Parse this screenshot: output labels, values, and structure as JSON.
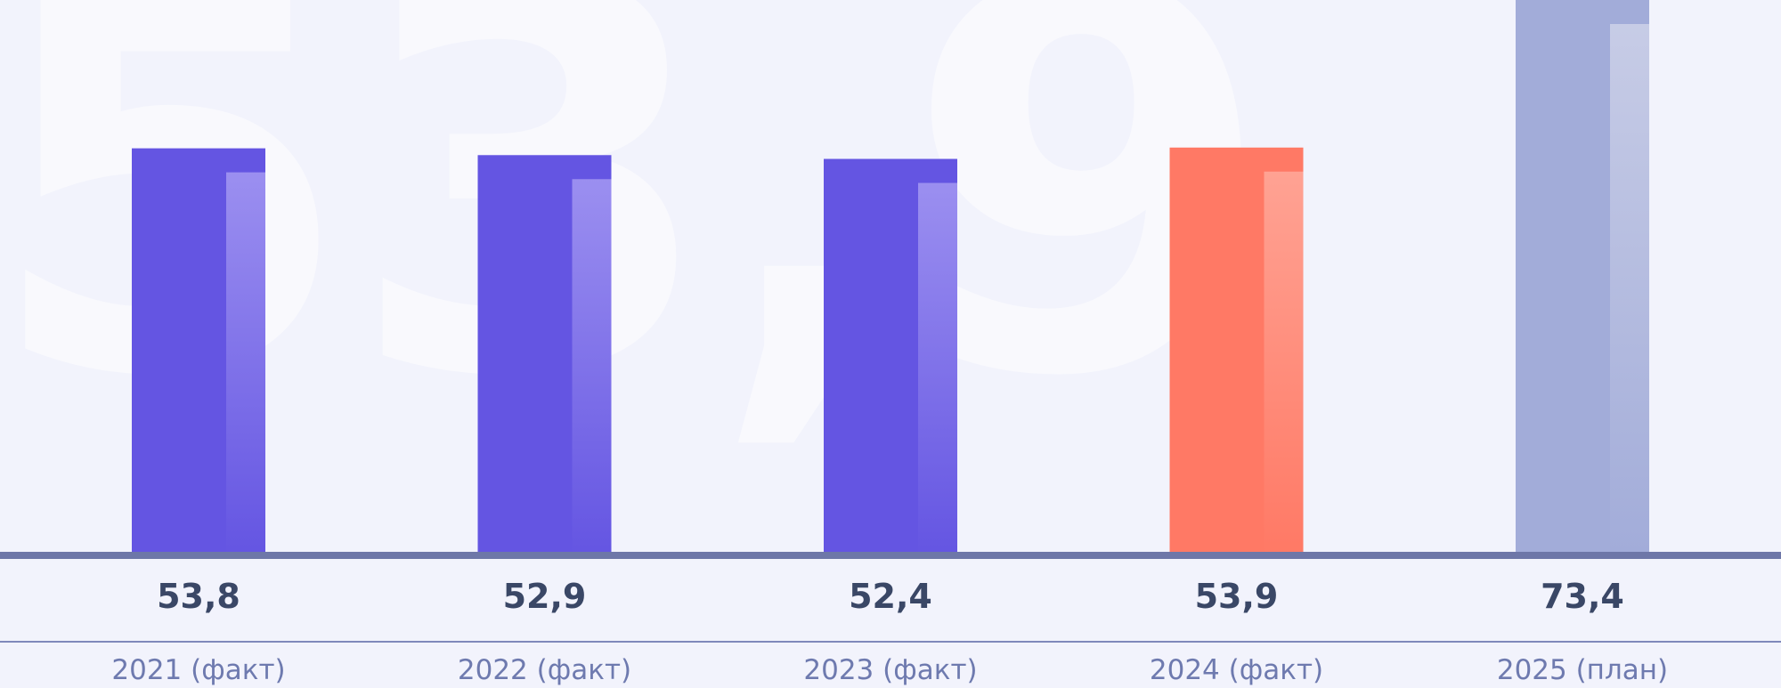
{
  "background_number": "53,9",
  "chart_data": {
    "type": "bar",
    "categories": [
      "2021 (факт)",
      "2022 (факт)",
      "2023 (факт)",
      "2024 (факт)",
      "2025 (план)"
    ],
    "values": [
      53.8,
      52.9,
      52.4,
      53.9,
      73.4
    ],
    "value_labels": [
      "53,8",
      "52,9",
      "52,4",
      "53,9",
      "73,4"
    ],
    "colors": [
      "#6455e2",
      "#6455e2",
      "#6455e2",
      "#ff7965",
      "#a2acd9"
    ],
    "highlight_colors": [
      "#9b8ff0",
      "#9b8ff0",
      "#9b8ff0",
      "#ffa293",
      "#c7cce6"
    ],
    "axis_color": "#6e77a8",
    "ylim": [
      0,
      73.4
    ],
    "grid": false,
    "title": "",
    "xlabel": "",
    "ylabel": ""
  }
}
